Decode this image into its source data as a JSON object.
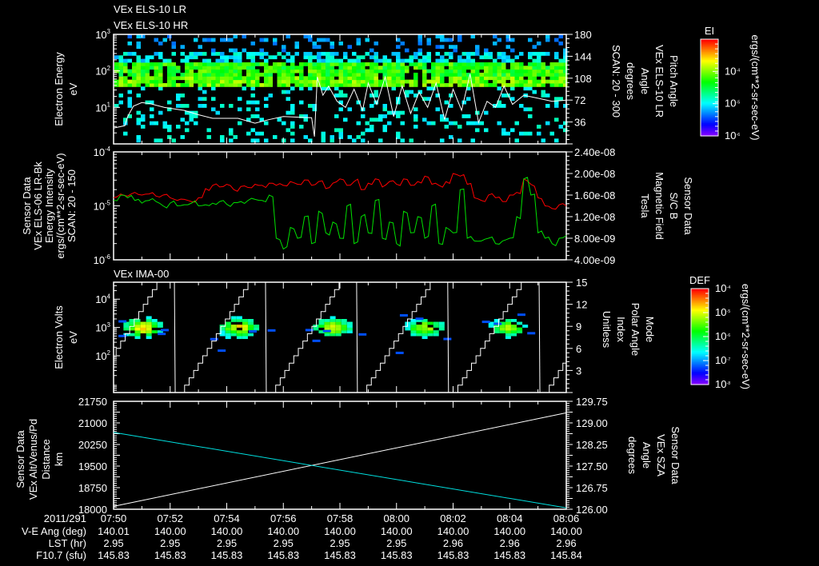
{
  "titles": {
    "els_lr": "VEx ELS-10 LR",
    "els_hr": "VEx ELS-10 HR",
    "ima": "VEx IMA-00"
  },
  "time_axis": {
    "date": "2011/291",
    "start_min": 0,
    "end_min": 16,
    "tick_labels": [
      "07:50",
      "07:52",
      "07:54",
      "07:56",
      "07:58",
      "08:00",
      "08:02",
      "08:04",
      "08:06"
    ]
  },
  "ephemeris": [
    {
      "label": "V-E Ang (deg)",
      "values": [
        "140.01",
        "140.00",
        "140.00",
        "140.00",
        "140.00",
        "140.00",
        "140.00",
        "140.00",
        "140.00"
      ]
    },
    {
      "label": "LST (hr)",
      "values": [
        "2.95",
        "2.95",
        "2.95",
        "2.95",
        "2.95",
        "2.95",
        "2.96",
        "2.96",
        "2.96"
      ]
    },
    {
      "label": "F10.7 (sfu)",
      "values": [
        "145.83",
        "145.83",
        "145.83",
        "145.83",
        "145.83",
        "145.83",
        "145.83",
        "145.83",
        "145.84"
      ]
    }
  ],
  "colors": {
    "ref_line": "#ffffff",
    "red_series": "#ff0000",
    "green_series": "#00e000",
    "sza": "#00e0e0"
  },
  "chart_data": [
    {
      "panel": "els",
      "type": "heatmap",
      "ylabel": [
        "Electron Energy",
        "eV"
      ],
      "y_scale": "log",
      "ylim_log10": [
        0,
        3
      ],
      "y_ticks": [
        {
          "base": "10",
          "exp": "3",
          "log": 3
        },
        {
          "base": "10",
          "exp": "2",
          "log": 2
        },
        {
          "base": "10",
          "exp": "1",
          "log": 1
        }
      ],
      "band_log10_eV": [
        1.5,
        2.15
      ],
      "right_label": [
        "Pitch Angle",
        "VEx ELS-10 LR",
        "Angle",
        "degrees",
        "SCAN: 20 - 300"
      ],
      "right_ylim": [
        0,
        180
      ],
      "right_ticks": [
        "180",
        "144",
        "108",
        "72",
        "36"
      ],
      "colorbar": {
        "title": "EI",
        "ticks": [
          {
            "base": "10",
            "exp": "-4"
          },
          {
            "base": "10",
            "exp": "-5"
          },
          {
            "base": "10",
            "exp": "-6"
          }
        ],
        "units": "ergs/(cm**2-sr-sec-eV)"
      },
      "pitch_angle": {
        "t": [
          0,
          0.4,
          0.5,
          0.7,
          1.0,
          1.3,
          1.8,
          2.5,
          3.0,
          3.5,
          4.4,
          5.0,
          5.5,
          6.0,
          7.0,
          7.1,
          7.2,
          7.4,
          7.6,
          7.9,
          8.2,
          8.5,
          8.8,
          9.0,
          9.3,
          9.6,
          9.9,
          10.2,
          10.5,
          10.8,
          11.1,
          11.4,
          11.7,
          12.0,
          12.3,
          12.6,
          12.9,
          13.2,
          13.5,
          13.8,
          14.1,
          14.5,
          15.0,
          15.5,
          16.0
        ],
        "v": [
          26,
          30,
          45,
          62,
          68,
          66,
          60,
          55,
          48,
          42,
          42,
          34,
          40,
          45,
          43,
          12,
          110,
          80,
          95,
          70,
          60,
          90,
          55,
          100,
          65,
          110,
          45,
          95,
          50,
          85,
          60,
          100,
          40,
          90,
          55,
          115,
          35,
          70,
          60,
          95,
          65,
          80,
          75,
          70,
          72
        ]
      }
    },
    {
      "panel": "intensity_bfield",
      "type": "line",
      "left_label": [
        "Sensor Data",
        "VEx ELS-06 LR-Bk",
        "Energy Intensity",
        "ergs/(cm**2-sr-sec-eV)",
        "SCAN: 20 - 150"
      ],
      "left_ylim_log10": [
        -6,
        -4
      ],
      "left_ticks": [
        {
          "base": "10",
          "exp": "-4",
          "log": -4
        },
        {
          "base": "10",
          "exp": "-5",
          "log": -5
        },
        {
          "base": "10",
          "exp": "-6",
          "log": -6
        }
      ],
      "right_label": [
        "Sensor Data",
        "S/C B",
        "Magnetic Field",
        "Tesla"
      ],
      "right_ylim": [
        4e-09,
        2.4e-08
      ],
      "right_ticks": [
        "2.40e-08",
        "2.00e-08",
        "1.60e-08",
        "1.20e-08",
        "8.00e-09",
        "4.00e-09"
      ],
      "series": [
        {
          "name": "Energy Intensity (log10)",
          "color": "#ff0000",
          "values": [
            -4.85,
            -4.78,
            -4.82,
            -4.75,
            -4.8,
            -4.78,
            -4.82,
            -4.8,
            -4.85,
            -4.9,
            -4.88,
            -4.92,
            -4.85,
            -4.68,
            -4.62,
            -4.65,
            -4.6,
            -4.7,
            -4.64,
            -4.66,
            -4.6,
            -4.62,
            -4.58,
            -4.62,
            -4.62,
            -4.55,
            -4.6,
            -4.52,
            -4.62,
            -4.55,
            -4.68,
            -4.58,
            -4.5,
            -4.62,
            -4.55,
            -4.7,
            -4.58,
            -4.5,
            -4.65,
            -4.55,
            -4.6,
            -4.5,
            -4.62,
            -4.55,
            -4.45,
            -4.6,
            -4.62,
            -4.55,
            -4.4,
            -4.45,
            -4.6,
            -4.85,
            -4.9,
            -4.8,
            -4.85,
            -4.92,
            -4.8,
            -4.75,
            -4.5,
            -4.6,
            -4.85,
            -5.0,
            -5.05,
            -4.98,
            -5.0
          ]
        },
        {
          "name": "Magnetic Field (nT)",
          "color": "#00e000",
          "values": [
            15,
            16,
            15.5,
            15,
            14.5,
            15,
            14.8,
            14,
            14.5,
            14,
            14.2,
            14.5,
            14,
            14.2,
            14.5,
            14.8,
            14.3,
            14.6,
            14.8,
            15,
            15.2,
            15,
            16,
            8,
            6,
            10,
            8,
            12,
            7,
            13,
            9,
            11,
            8,
            14,
            7,
            12,
            9,
            15,
            8,
            11,
            7,
            13,
            9,
            12,
            8,
            14,
            7,
            10,
            9,
            17,
            8,
            7.5,
            7.5,
            8,
            7,
            7.5,
            8,
            12,
            19,
            16,
            9,
            8,
            7,
            8,
            8.5
          ]
        }
      ]
    },
    {
      "panel": "ima",
      "type": "heatmap",
      "ylabel": [
        "Electron Volts",
        "eV"
      ],
      "ylim_log10": [
        0.7,
        4.6
      ],
      "y_ticks": [
        {
          "base": "10",
          "exp": "4",
          "log": 4
        },
        {
          "base": "10",
          "exp": "3",
          "log": 3
        },
        {
          "base": "10",
          "exp": "2",
          "log": 2
        }
      ],
      "blob_centers_min": [
        0.95,
        4.35,
        7.65,
        10.9,
        13.85
      ],
      "blob_center_log10_eV": 2.95,
      "right_label": [
        "Mode",
        "Polar Angle",
        "Index",
        "Unitless"
      ],
      "right_ylim": [
        0,
        15
      ],
      "right_ticks": [
        "15",
        "12",
        "9",
        "6",
        "3"
      ],
      "polar_reset_min": [
        2.15,
        5.37,
        8.59,
        11.81,
        15.04
      ],
      "colorbar": {
        "title": "DEF",
        "ticks": [
          {
            "base": "10",
            "exp": "-4"
          },
          {
            "base": "10",
            "exp": "-5"
          },
          {
            "base": "10",
            "exp": "-6"
          },
          {
            "base": "10",
            "exp": "-7"
          },
          {
            "base": "10",
            "exp": "-8"
          }
        ],
        "units": "ergs/(cm**2-sr-sec-eV)"
      }
    },
    {
      "panel": "distance_sza",
      "type": "line",
      "left_label": [
        "Sensor Data",
        "VEx Alt/Venus/Pd",
        "Distance",
        "km"
      ],
      "left_ylim": [
        18000,
        21750
      ],
      "left_ticks": [
        "21750",
        "21000",
        "20250",
        "19500",
        "18750",
        "18000"
      ],
      "right_label": [
        "Sensor Data",
        "VEx SZA",
        "Angle",
        "degrees"
      ],
      "right_ylim": [
        126.0,
        129.75
      ],
      "right_ticks": [
        "129.75",
        "129.00",
        "128.25",
        "127.50",
        "126.75",
        "126.00"
      ],
      "series": [
        {
          "name": "Distance (km)",
          "color": "#ffffff",
          "t": [
            0,
            16
          ],
          "values": [
            18100,
            21350
          ]
        },
        {
          "name": "SZA (deg)",
          "color": "#00e0e0",
          "t": [
            0,
            16
          ],
          "values": [
            128.67,
            126.05
          ]
        }
      ]
    }
  ]
}
